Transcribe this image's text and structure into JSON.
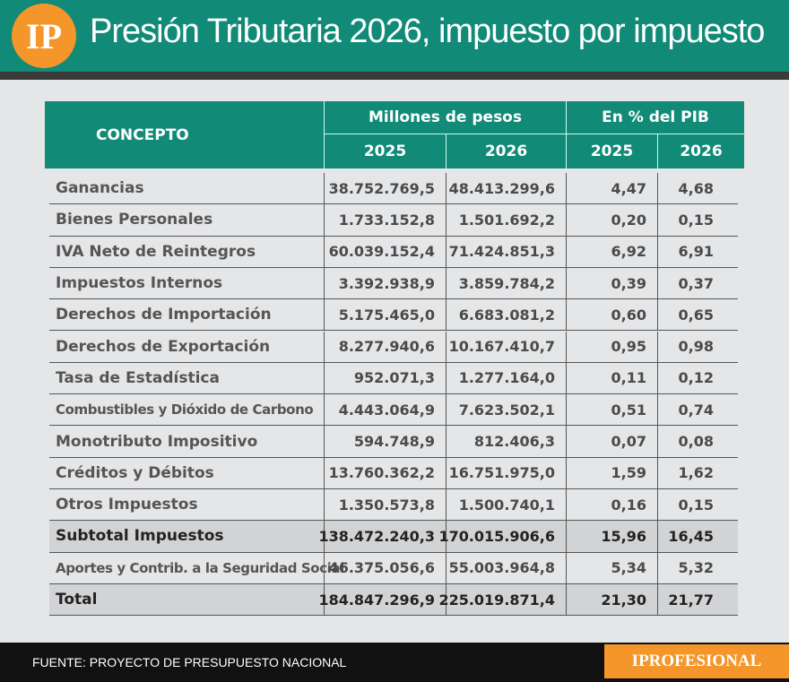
{
  "header": {
    "logo": "IP",
    "title": "Presión Tributaria 2026, impuesto por impuesto"
  },
  "table": {
    "concept_header": "CONCEPTO",
    "groups": [
      "Millones de pesos",
      "En % del PIB"
    ],
    "years": [
      "2025",
      "2026",
      "2025",
      "2026"
    ],
    "rows": [
      [
        "Ganancias",
        "38.752.769,5",
        "48.413.299,6",
        "4,47",
        "4,68"
      ],
      [
        "Bienes Personales",
        "1.733.152,8",
        "1.501.692,2",
        "0,20",
        "0,15"
      ],
      [
        "IVA Neto de Reintegros",
        "60.039.152,4",
        "71.424.851,3",
        "6,92",
        "6,91"
      ],
      [
        "Impuestos Internos",
        "3.392.938,9",
        "3.859.784,2",
        "0,39",
        "0,37"
      ],
      [
        "Derechos de Importación",
        "5.175.465,0",
        "6.683.081,2",
        "0,60",
        "0,65"
      ],
      [
        "Derechos de Exportación",
        "8.277.940,6",
        "10.167.410,7",
        "0,95",
        "0,98"
      ],
      [
        "Tasa de Estadística",
        "952.071,3",
        "1.277.164,0",
        "0,11",
        "0,12"
      ],
      [
        "Combustibles y Dióxido de Carbono",
        "4.443.064,9",
        "7.623.502,1",
        "0,51",
        "0,74"
      ],
      [
        "Monotributo Impositivo",
        "594.748,9",
        "812.406,3",
        "0,07",
        "0,08"
      ],
      [
        "Créditos y Débitos",
        "13.760.362,2",
        "16.751.975,0",
        "1,59",
        "1,62"
      ],
      [
        "Otros Impuestos",
        "1.350.573,8",
        "1.500.740,1",
        "0,16",
        "0,15"
      ],
      [
        "Subtotal Impuestos",
        "138.472.240,3",
        "170.015.906,6",
        "15,96",
        "16,45"
      ],
      [
        "Aportes y Contrib. a la Seguridad Social",
        "46.375.056,6",
        "55.003.964,8",
        "5,34",
        "5,32"
      ],
      [
        "Total",
        "184.847.296,9",
        "225.019.871,4",
        "21,30",
        "21,77"
      ]
    ],
    "shaded_rows": [
      11,
      13
    ]
  },
  "footer": {
    "source": "FUENTE: PROYECTO DE PRESUPUESTO NACIONAL",
    "brand": "IPROFESIONAL"
  }
}
